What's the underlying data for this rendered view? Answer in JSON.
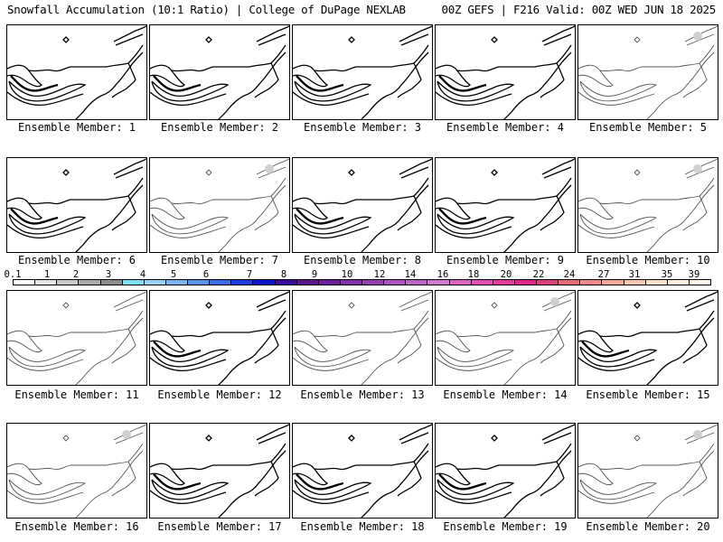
{
  "header": {
    "left": "Snowfall Accumulation (10:1 Ratio) | College of DuPage NEXLAB",
    "right": "00Z GEFS | F216 Valid: 00Z WED JUN 18 2025"
  },
  "members": [
    {
      "label": "Ensemble Member: 1",
      "faded": false,
      "blob": false
    },
    {
      "label": "Ensemble Member: 2",
      "faded": false,
      "blob": false
    },
    {
      "label": "Ensemble Member: 3",
      "faded": false,
      "blob": false
    },
    {
      "label": "Ensemble Member: 4",
      "faded": false,
      "blob": false
    },
    {
      "label": "Ensemble Member: 5",
      "faded": true,
      "blob": true
    },
    {
      "label": "Ensemble Member: 6",
      "faded": false,
      "blob": false
    },
    {
      "label": "Ensemble Member: 7",
      "faded": true,
      "blob": true
    },
    {
      "label": "Ensemble Member: 8",
      "faded": false,
      "blob": false
    },
    {
      "label": "Ensemble Member: 9",
      "faded": false,
      "blob": false
    },
    {
      "label": "Ensemble Member: 10",
      "faded": true,
      "blob": true
    },
    {
      "label": "Ensemble Member: 11",
      "faded": true,
      "blob": false
    },
    {
      "label": "Ensemble Member: 12",
      "faded": false,
      "blob": false
    },
    {
      "label": "Ensemble Member: 13",
      "faded": true,
      "blob": false
    },
    {
      "label": "Ensemble Member: 14",
      "faded": true,
      "blob": true
    },
    {
      "label": "Ensemble Member: 15",
      "faded": false,
      "blob": false
    },
    {
      "label": "Ensemble Member: 16",
      "faded": true,
      "blob": true
    },
    {
      "label": "Ensemble Member: 17",
      "faded": false,
      "blob": false
    },
    {
      "label": "Ensemble Member: 18",
      "faded": false,
      "blob": false
    },
    {
      "label": "Ensemble Member: 19",
      "faded": false,
      "blob": false
    },
    {
      "label": "Ensemble Member: 20",
      "faded": true,
      "blob": true
    }
  ],
  "legend": {
    "ticks": [
      "0.1",
      "1",
      "2",
      "3",
      "4",
      "5",
      "6",
      "7",
      "8",
      "9",
      "10",
      "12",
      "14",
      "16",
      "18",
      "20",
      "22",
      "24",
      "27",
      "31",
      "35",
      "39"
    ],
    "colors": [
      "#ffffff",
      "#e6e6e6",
      "#c8c8c8",
      "#aaaaaa",
      "#8c8c8c",
      "#78e0f0",
      "#9ad0f8",
      "#7ab4f4",
      "#5a94ee",
      "#3a6cea",
      "#1e3cdc",
      "#0a14c8",
      "#3c0a9c",
      "#5a148c",
      "#6e1e9c",
      "#8232a8",
      "#963cb4",
      "#aa50c0",
      "#be64c8",
      "#d278d0",
      "#dc64c0",
      "#e050b0",
      "#e03c9c",
      "#dc2888",
      "#d8407a",
      "#e86a78",
      "#f08a86",
      "#f4a898",
      "#f8c8b0",
      "#fce0c8",
      "#fef0dc",
      "#fff8ec"
    ]
  }
}
